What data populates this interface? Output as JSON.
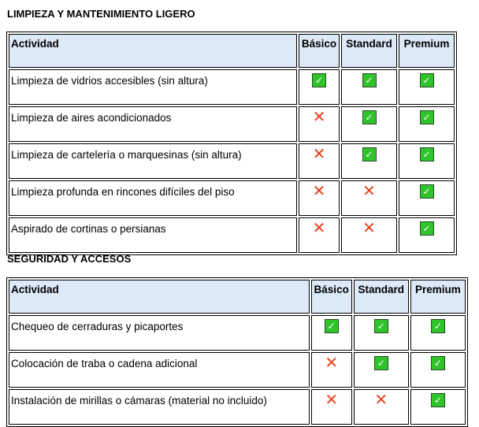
{
  "colors": {
    "header_bg": "#dce9f7",
    "check": "#2fc42a",
    "cross": "#e8401f"
  },
  "sections": [
    {
      "title": "LIMPIEZA Y MANTENIMIENTO LIGERO",
      "headers": [
        "Actividad",
        "Básico",
        "Standard",
        "Premium"
      ],
      "rows": [
        {
          "activity": "Limpieza de vidrios accesibles (sin altura)",
          "values": [
            true,
            true,
            true
          ]
        },
        {
          "activity": "Limpieza de aires acondicionados",
          "values": [
            false,
            true,
            true
          ]
        },
        {
          "activity": "Limpieza de cartelería o marquesinas (sin altura)",
          "values": [
            false,
            true,
            true
          ]
        },
        {
          "activity": "Limpieza profunda en rincones difíciles del piso",
          "values": [
            false,
            false,
            true
          ]
        },
        {
          "activity": "Aspirado de cortinas o persianas",
          "values": [
            false,
            false,
            true
          ]
        }
      ]
    },
    {
      "title": "SEGURIDAD Y ACCESOS",
      "headers": [
        "Actividad",
        "Básico",
        "Standard",
        "Premium"
      ],
      "rows": [
        {
          "activity": "Chequeo de cerraduras y picaportes",
          "values": [
            true,
            true,
            true
          ]
        },
        {
          "activity": "Colocación de traba o cadena adicional",
          "values": [
            false,
            true,
            true
          ]
        },
        {
          "activity": "Instalación de mirillas o cámaras (material no incluido)",
          "values": [
            false,
            false,
            true
          ]
        }
      ]
    }
  ]
}
